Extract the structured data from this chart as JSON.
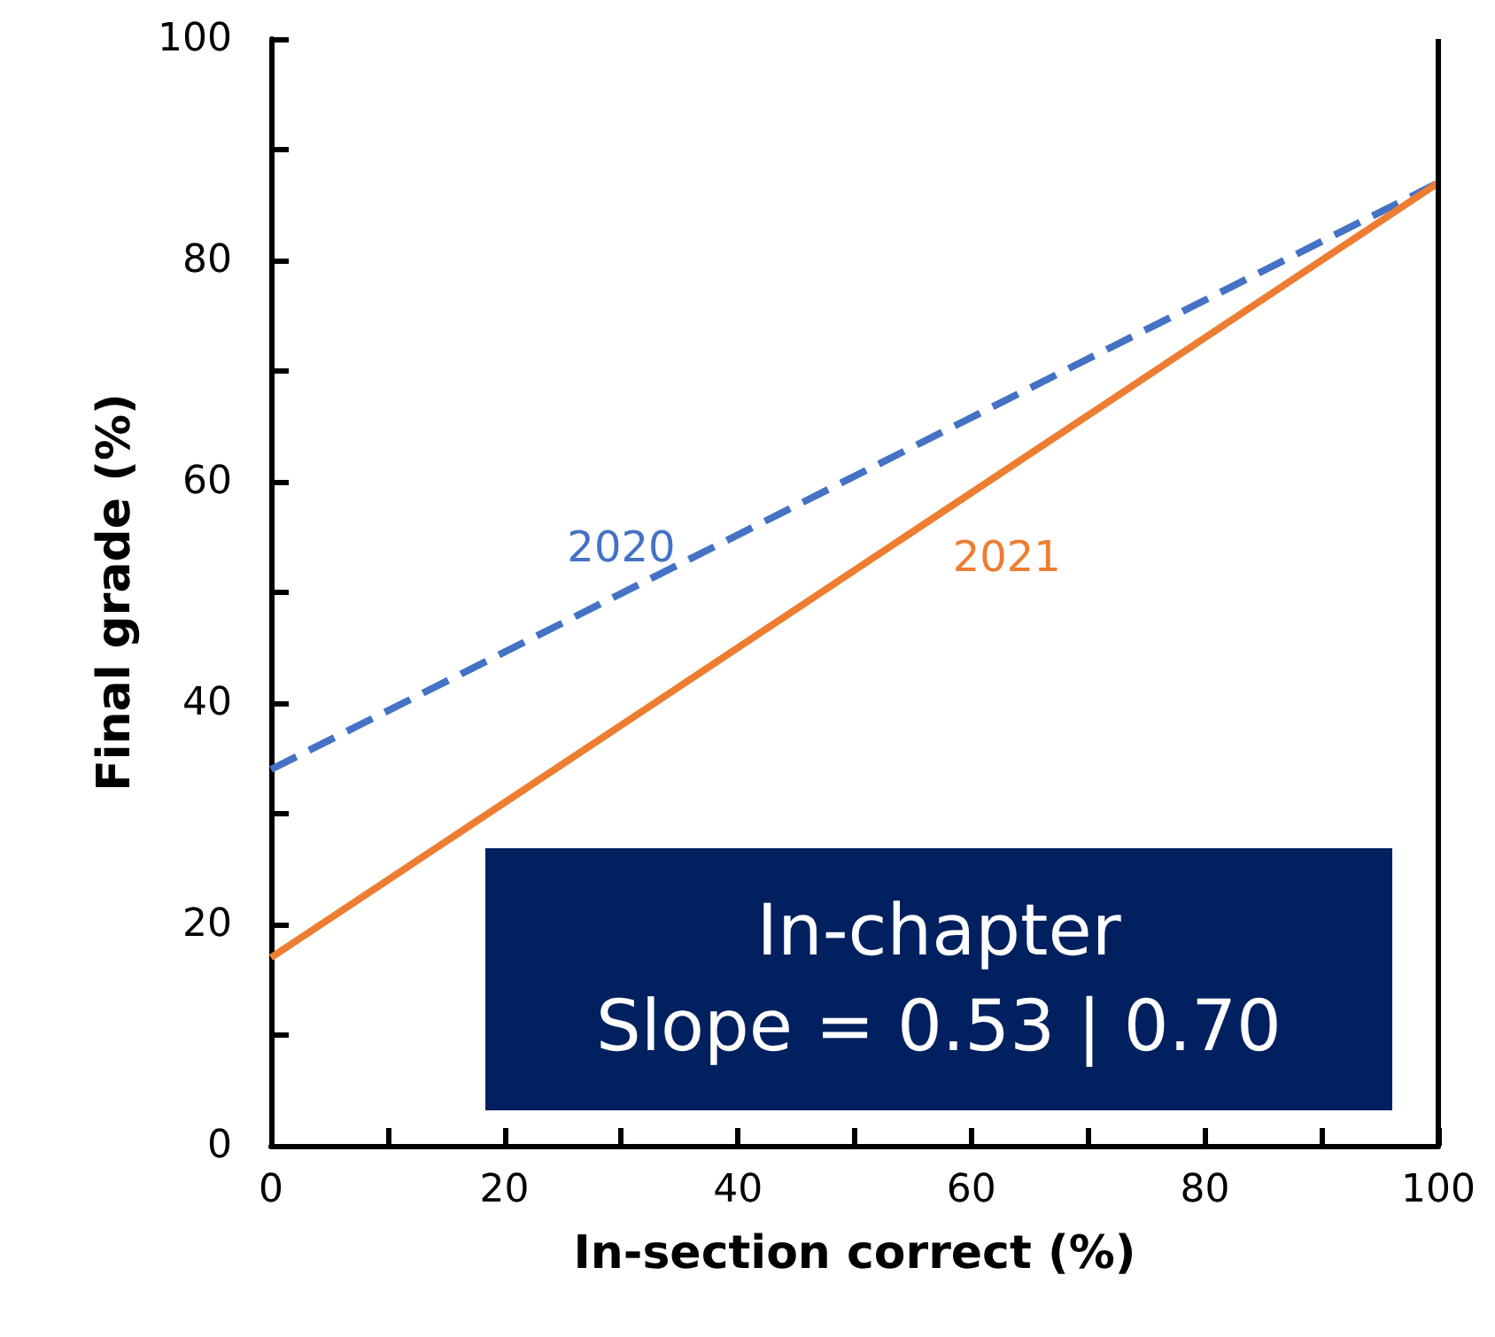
{
  "chart_data": {
    "type": "line",
    "xlabel": "In-section correct (%)",
    "ylabel": "Final grade (%)",
    "x": [
      0,
      100
    ],
    "series": [
      {
        "name": "2020",
        "color": "#4472c4",
        "values": [
          34,
          87
        ],
        "line_style": "dashed"
      },
      {
        "name": "2021",
        "color": "#ed7d31",
        "values": [
          17,
          87
        ],
        "line_style": "solid"
      }
    ],
    "xlim": [
      0,
      100
    ],
    "xticks": [
      0,
      {
        "value": 10,
        "label": null
      },
      20,
      {
        "value": 30,
        "label": null
      },
      40,
      {
        "value": 50,
        "label": null
      },
      60,
      {
        "value": 70,
        "label": null
      },
      80,
      {
        "value": 90,
        "label": null
      },
      100
    ],
    "ylim": [
      0,
      100
    ],
    "yticks": [
      0,
      {
        "value": 10,
        "label": null
      },
      20,
      {
        "value": 30,
        "label": null
      },
      40,
      {
        "value": 50,
        "label": null
      },
      60,
      {
        "value": 70,
        "label": null
      },
      80,
      {
        "value": 90,
        "label": null
      },
      100
    ],
    "annotations": [
      "In-chapter\nSlope = 0.53 | 0.70"
    ],
    "grid": false,
    "legend": false,
    "marker": "none"
  }
}
